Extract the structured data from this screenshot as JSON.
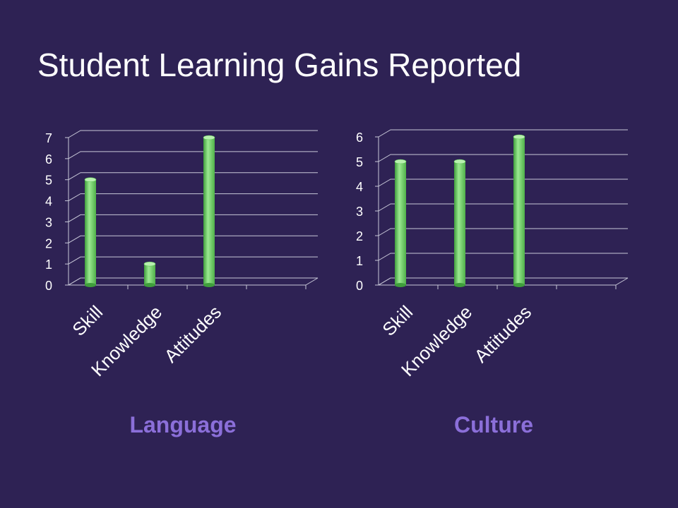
{
  "title": "Student Learning Gains Reported",
  "colors": {
    "background": "#2e2254",
    "bar": "#6fd36a",
    "gridline": "#c8c8d8",
    "axis_text": "#ffffff",
    "caption": "#8b6fd9"
  },
  "chart_data": [
    {
      "type": "bar",
      "title": "Language",
      "categories": [
        "Skill",
        "Knowledge",
        "Attitudes"
      ],
      "values": [
        5,
        1,
        7
      ],
      "ylim": [
        0,
        7
      ],
      "yticks": [
        "0",
        "1",
        "2",
        "3",
        "4",
        "5",
        "6",
        "7"
      ],
      "grid": true,
      "three_d": true
    },
    {
      "type": "bar",
      "title": "Culture",
      "categories": [
        "Skill",
        "Knowledge",
        "Attitudes"
      ],
      "values": [
        5,
        5,
        6
      ],
      "ylim": [
        0,
        6
      ],
      "yticks": [
        "0",
        "1",
        "2",
        "3",
        "4",
        "5",
        "6"
      ],
      "grid": true,
      "three_d": true
    }
  ]
}
